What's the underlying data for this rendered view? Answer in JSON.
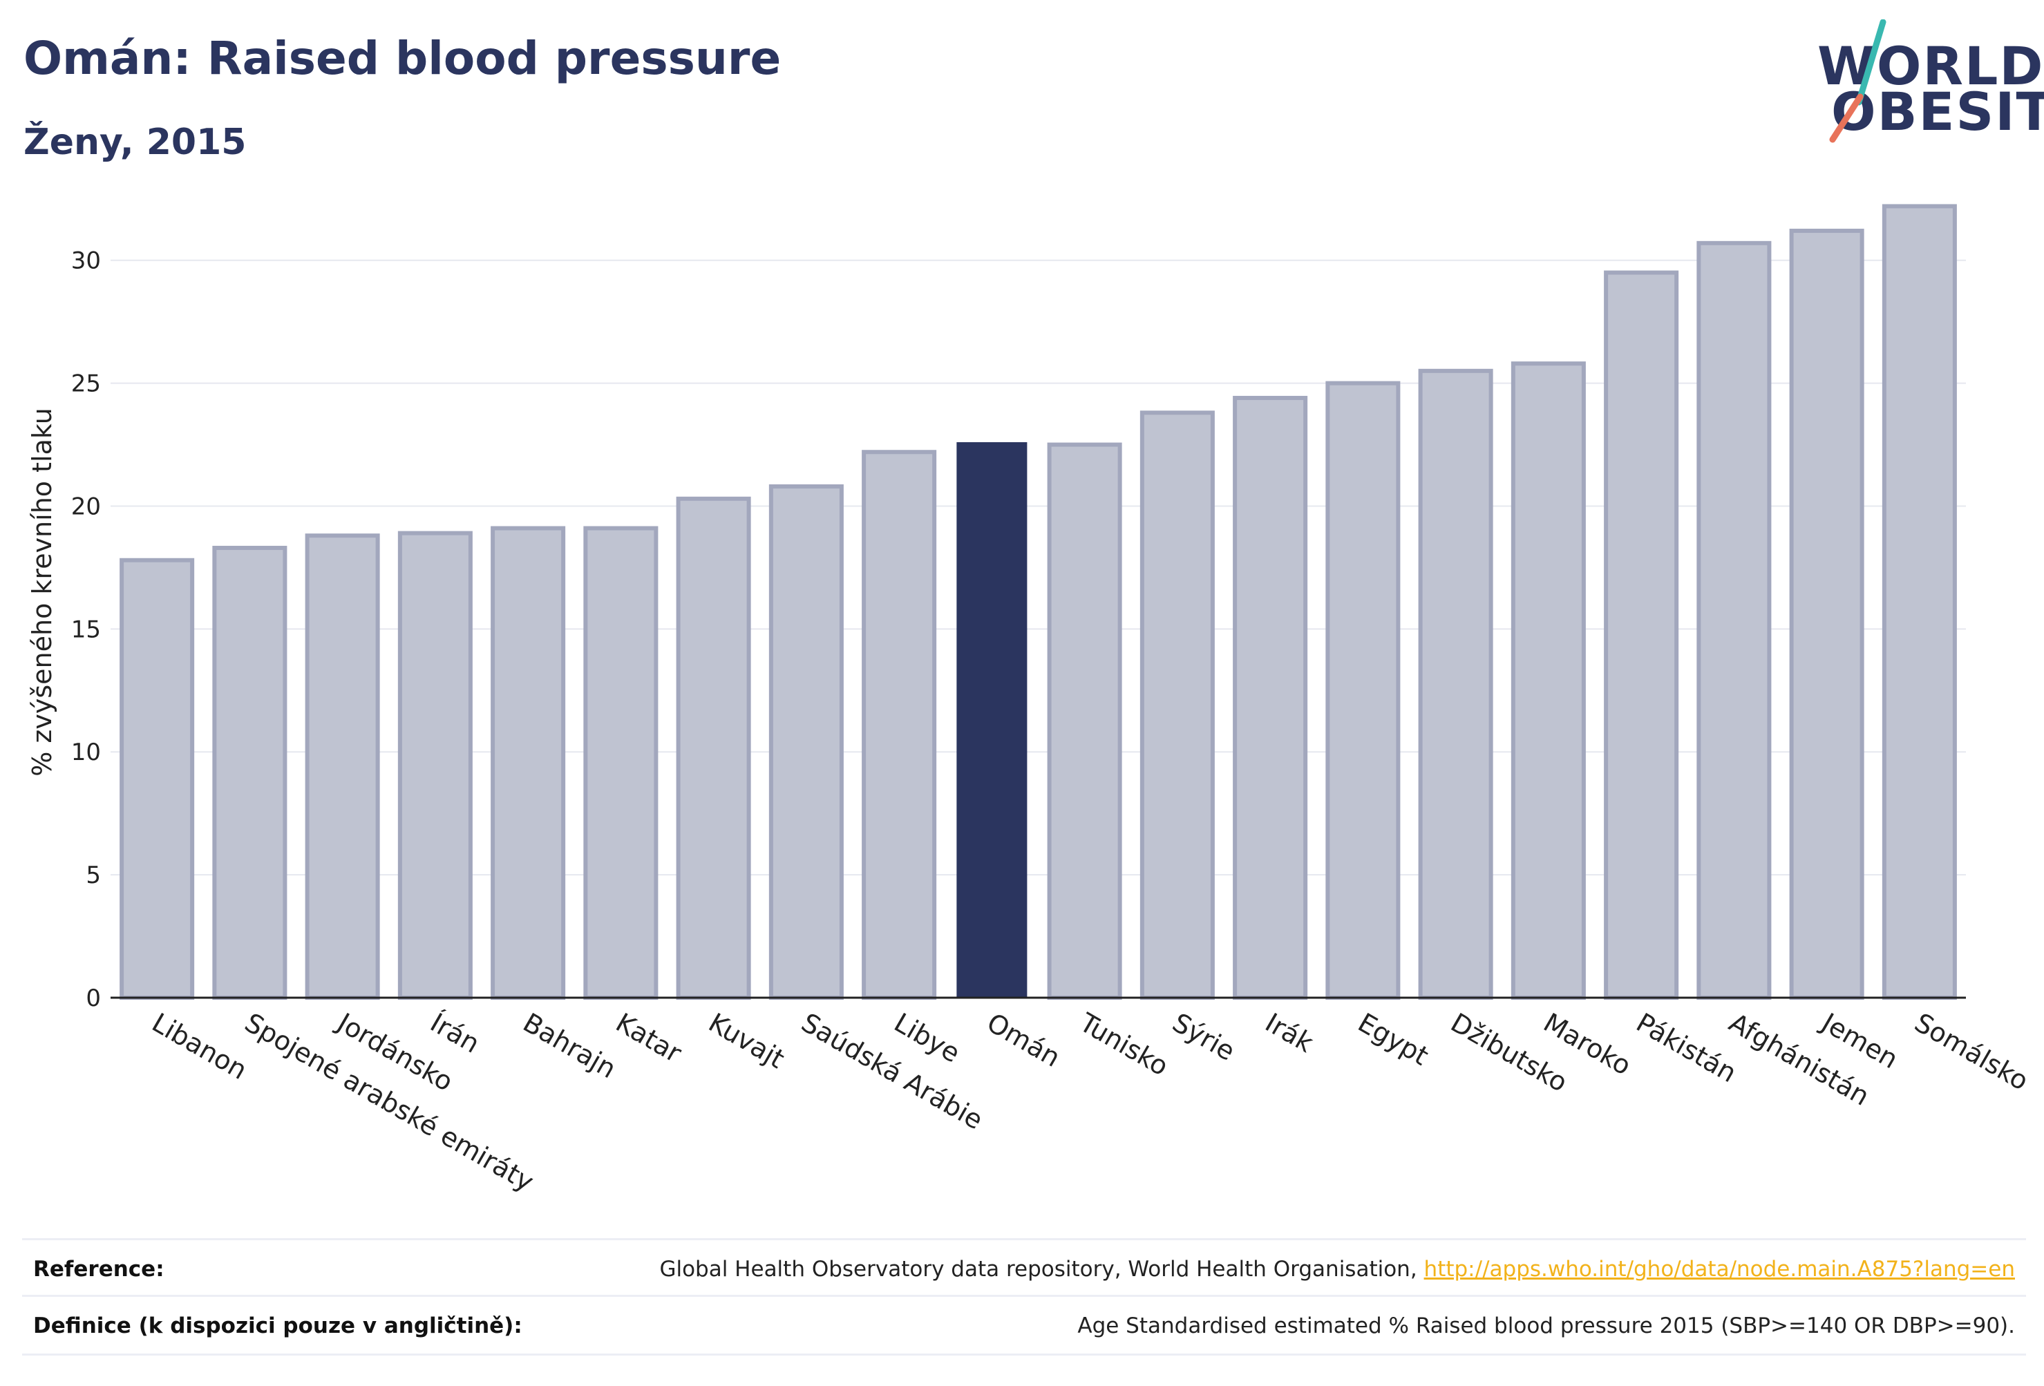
{
  "header": {
    "title": "Omán: Raised blood pressure",
    "subtitle": "Ženy, 2015"
  },
  "logo": {
    "line1": "WORLD",
    "line2": "OBESITY",
    "slash_colors": [
      "#39b8b0",
      "#e8735a"
    ]
  },
  "colors": {
    "highlight_bar": "#2b355f",
    "other_bar": "#bfc3d1",
    "other_bar_border": "#a2a7bd",
    "grid": "#e6e8ef",
    "axis": "#222222"
  },
  "chart_data": {
    "type": "bar",
    "title": "",
    "xlabel": "",
    "ylabel": "% zvýšeného krevního tlaku",
    "ylim": [
      0,
      33
    ],
    "yticks": [
      0,
      5,
      10,
      15,
      20,
      25,
      30
    ],
    "grid": true,
    "highlight": "Omán",
    "categories": [
      "Libanon",
      "Spojené arabské emiráty",
      "Jordánsko",
      "Írán",
      "Bahrajn",
      "Katar",
      "Kuvajt",
      "Saúdská Arábie",
      "Libye",
      "Omán",
      "Tunisko",
      "Sýrie",
      "Irák",
      "Egypt",
      "Džibutsko",
      "Maroko",
      "Pákistán",
      "Afghánistán",
      "Jemen",
      "Somálsko"
    ],
    "values": [
      17.8,
      18.3,
      18.8,
      18.9,
      19.1,
      19.1,
      20.3,
      20.8,
      22.2,
      22.6,
      22.5,
      23.8,
      24.4,
      25.0,
      25.5,
      25.8,
      29.5,
      30.7,
      31.2,
      32.2
    ]
  },
  "footer": {
    "reference_label": "Reference:",
    "reference_text": "Global Health Observatory data repository, World Health Organisation, ",
    "reference_link": "http://apps.who.int/gho/data/node.main.A875?lang=en",
    "definition_label": "Definice (k dispozici pouze v angličtině):",
    "definition_text": "Age Standardised estimated % Raised blood pressure 2015 (SBP>=140 OR DBP>=90)."
  }
}
